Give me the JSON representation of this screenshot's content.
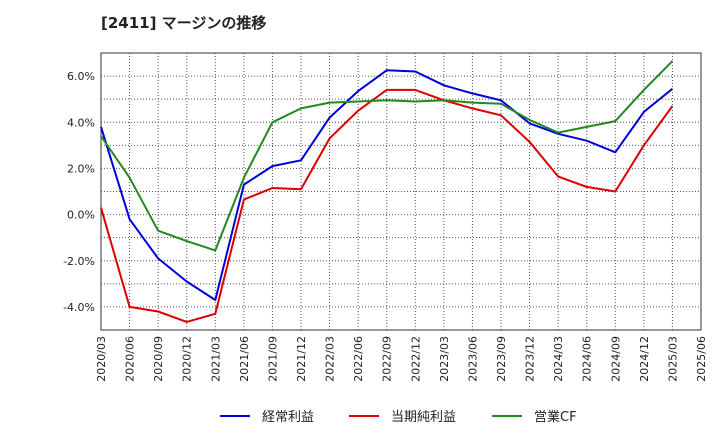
{
  "chart_data": {
    "type": "line",
    "title": "[2411]  マージンの推移",
    "xlabel": "",
    "ylabel": "",
    "ylim": [
      -5.0,
      7.0
    ],
    "yticks": [
      -4.0,
      -2.0,
      0.0,
      2.0,
      4.0,
      6.0
    ],
    "ytick_labels": [
      "-4.0%",
      "-2.0%",
      "0.0%",
      "2.0%",
      "4.0%",
      "6.0%"
    ],
    "categories": [
      "2020/03",
      "2020/06",
      "2020/09",
      "2020/12",
      "2021/03",
      "2021/06",
      "2021/09",
      "2021/12",
      "2022/03",
      "2022/06",
      "2022/09",
      "2022/12",
      "2023/03",
      "2023/06",
      "2023/09",
      "2023/12",
      "2024/03",
      "2024/06",
      "2024/09",
      "2024/12",
      "2025/03",
      "2025/06"
    ],
    "series": [
      {
        "name": "経常利益",
        "color": "#0000dd",
        "values": [
          3.8,
          -0.2,
          -1.9,
          -2.9,
          -3.7,
          1.3,
          2.1,
          2.35,
          4.2,
          5.35,
          6.25,
          6.2,
          5.6,
          5.25,
          4.95,
          3.95,
          3.5,
          3.2,
          2.7,
          4.45,
          5.45,
          null
        ]
      },
      {
        "name": "当期純利益",
        "color": "#dd0000",
        "values": [
          0.3,
          -4.0,
          -4.2,
          -4.65,
          -4.3,
          0.65,
          1.15,
          1.1,
          3.3,
          4.5,
          5.4,
          5.4,
          4.95,
          4.6,
          4.3,
          3.15,
          1.65,
          1.2,
          1.0,
          3.0,
          4.7,
          null
        ]
      },
      {
        "name": "営業CF",
        "color": "#228822",
        "values": [
          3.4,
          1.6,
          -0.7,
          -1.15,
          -1.55,
          1.6,
          4.0,
          4.6,
          4.85,
          4.9,
          4.95,
          4.9,
          4.95,
          4.85,
          4.8,
          4.1,
          3.55,
          3.8,
          4.05,
          5.4,
          6.65,
          null
        ]
      }
    ],
    "grid": true,
    "legend_position": "bottom"
  }
}
